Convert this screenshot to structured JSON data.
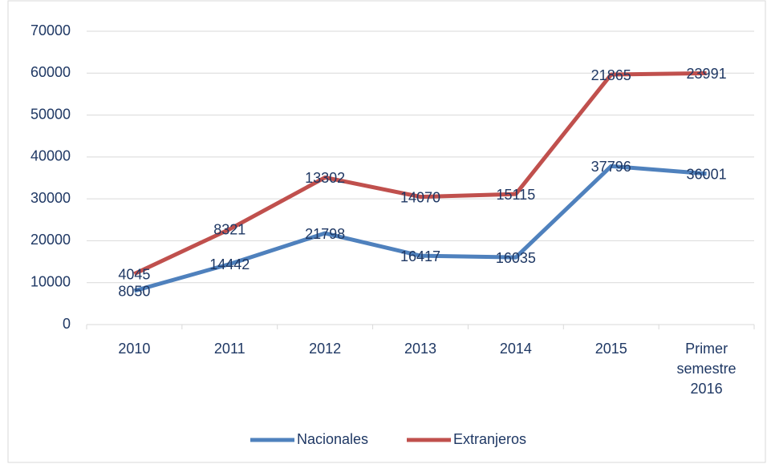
{
  "chart_data": {
    "type": "line",
    "stacked": true,
    "categories": [
      "2010",
      "2011",
      "2012",
      "2013",
      "2014",
      "2015",
      "Primer semestre 2016"
    ],
    "series": [
      {
        "name": "Nacionales",
        "color": "#4f81bd",
        "values": [
          8050,
          14442,
          21798,
          16417,
          16035,
          37796,
          36001
        ]
      },
      {
        "name": "Extranjeros",
        "color": "#c0504d",
        "values": [
          4045,
          8321,
          13302,
          14070,
          15115,
          21865,
          23991
        ]
      }
    ],
    "ylim": [
      0,
      70000
    ],
    "yticks": [
      0,
      10000,
      20000,
      30000,
      40000,
      50000,
      60000,
      70000
    ],
    "grid": true,
    "legend": "bottom"
  }
}
